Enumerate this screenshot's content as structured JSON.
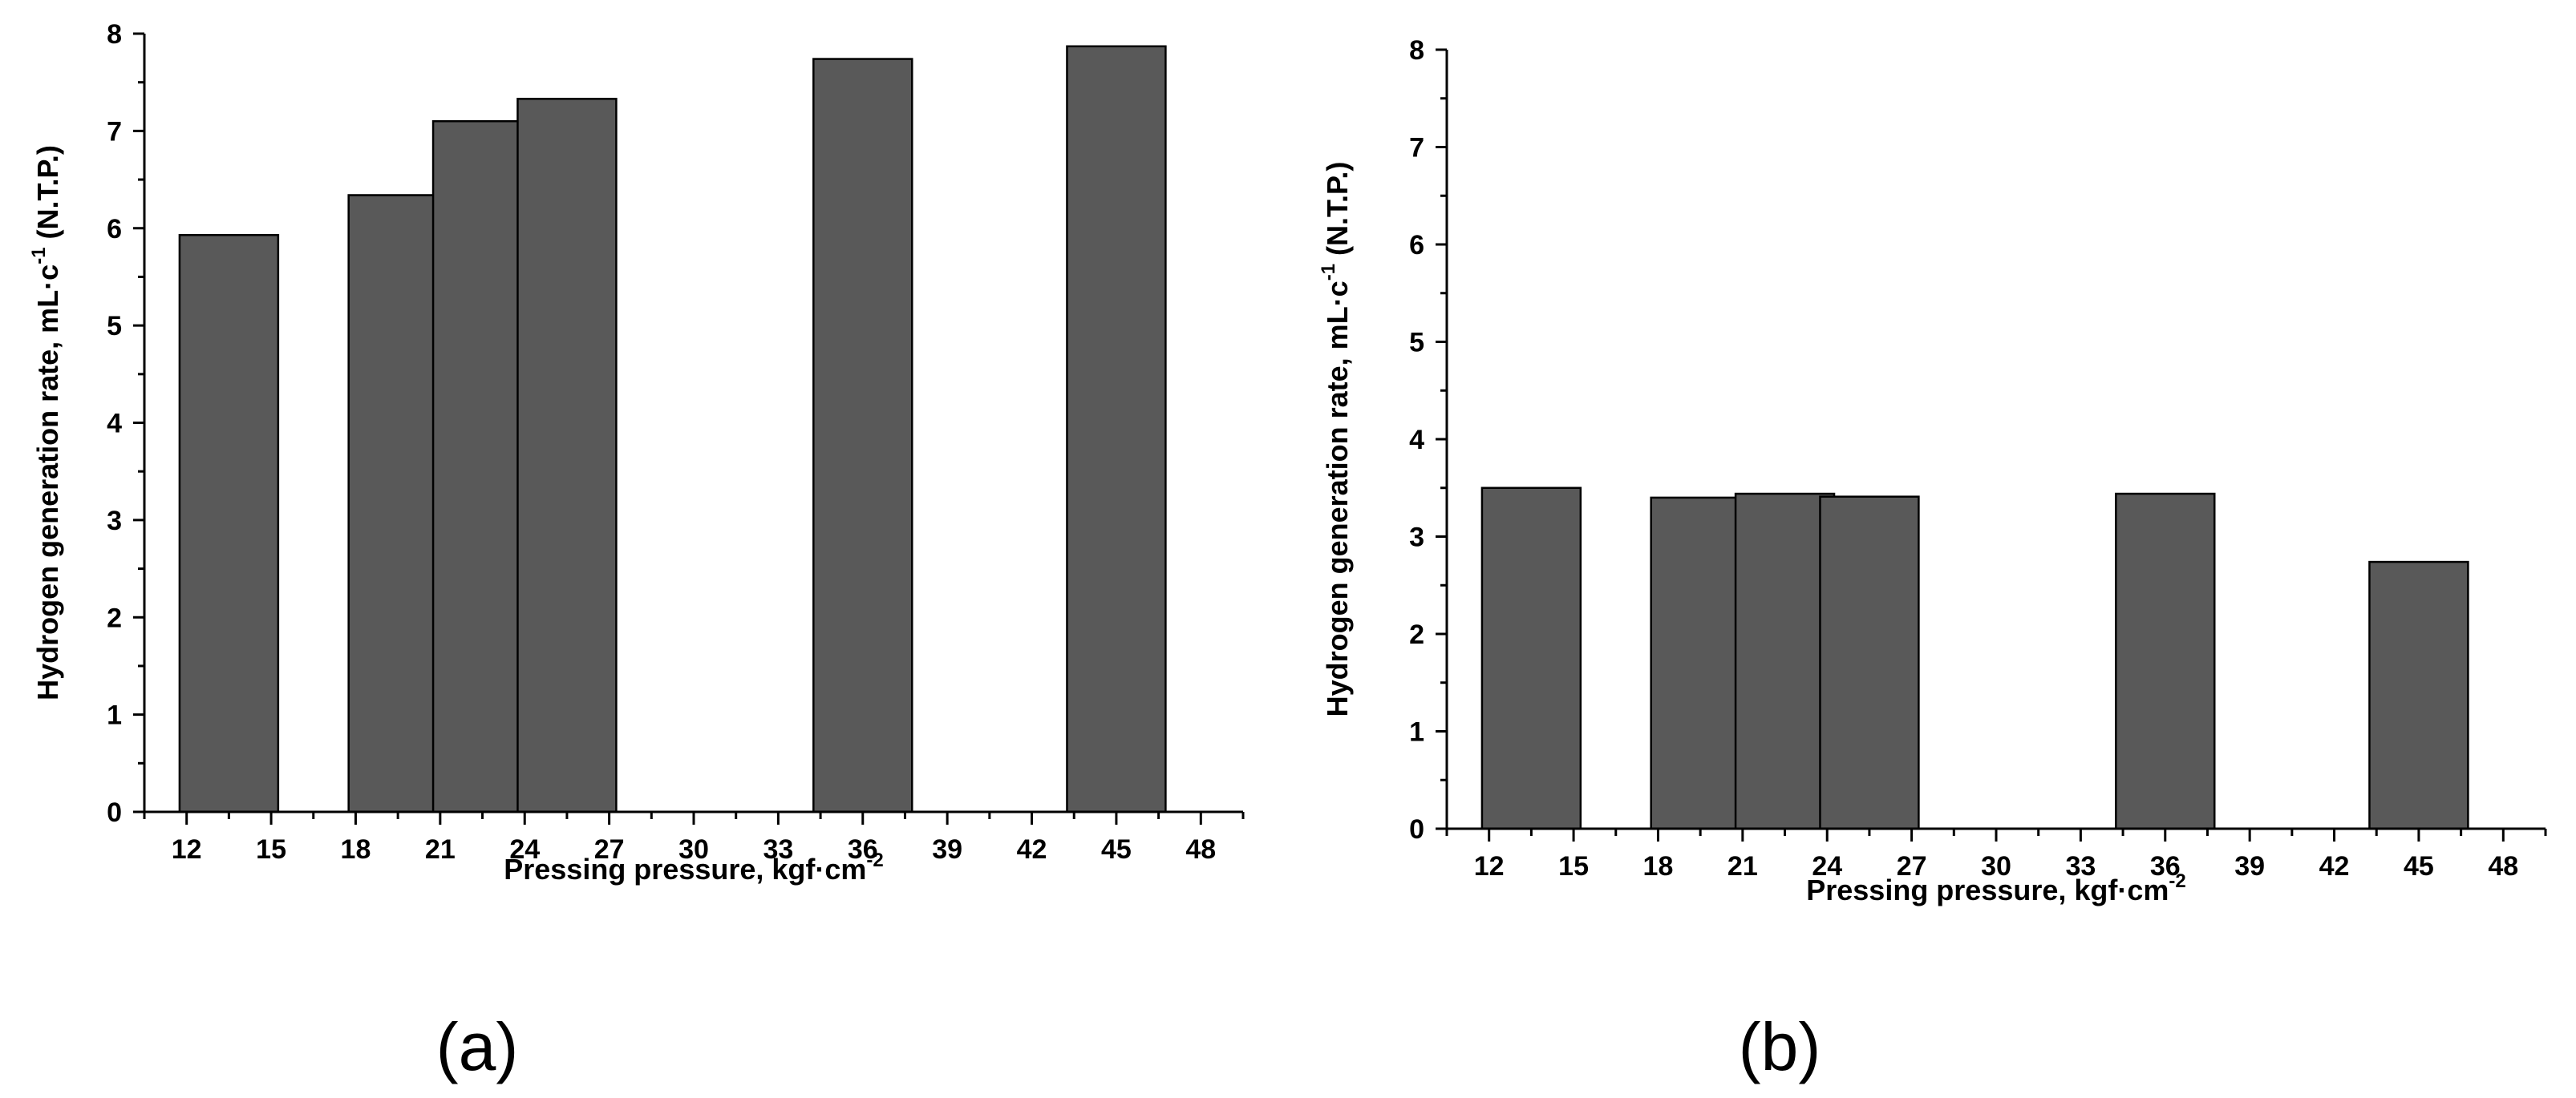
{
  "colors": {
    "bar_fill": "#595959",
    "axis": "#000000",
    "background": "#ffffff"
  },
  "chart_data": [
    {
      "type": "bar",
      "panel_label": "(a)",
      "xlabel": {
        "text": "Pressing pressure, kgf·cm",
        "sup": "-2"
      },
      "ylabel": {
        "text_before": "Hydrogen generation rate, mL·c",
        "sup": "-1",
        "text_after": " (N.T.P.)"
      },
      "xlim": [
        10.5,
        49.5
      ],
      "ylim": [
        0,
        8
      ],
      "x_ticks": [
        12,
        15,
        18,
        21,
        24,
        27,
        30,
        33,
        36,
        39,
        42,
        45,
        48
      ],
      "y_ticks": [
        0,
        1,
        2,
        3,
        4,
        5,
        6,
        7,
        8
      ],
      "y_minor_step": 0.5,
      "x_minor_step": 1.5,
      "bar_width": 3.5,
      "x": [
        13.5,
        19.5,
        22.5,
        25.5,
        36,
        45
      ],
      "values": [
        5.93,
        6.34,
        7.1,
        7.33,
        7.74,
        7.87
      ]
    },
    {
      "type": "bar",
      "panel_label": "(b)",
      "xlabel": {
        "text": "Pressing pressure, kgf·cm",
        "sup": "-2"
      },
      "ylabel": {
        "text_before": "Hydrogen generation rate, mL·c",
        "sup": "-1",
        "text_after": " (N.T.P.)"
      },
      "xlim": [
        10.5,
        49.5
      ],
      "ylim": [
        0,
        8
      ],
      "x_ticks": [
        12,
        15,
        18,
        21,
        24,
        27,
        30,
        33,
        36,
        39,
        42,
        45,
        48
      ],
      "y_ticks": [
        0,
        1,
        2,
        3,
        4,
        5,
        6,
        7,
        8
      ],
      "y_minor_step": 0.5,
      "x_minor_step": 1.5,
      "bar_width": 3.5,
      "x": [
        13.5,
        19.5,
        22.5,
        25.5,
        36,
        45
      ],
      "values": [
        3.5,
        3.4,
        3.44,
        3.41,
        3.44,
        2.74
      ]
    }
  ]
}
